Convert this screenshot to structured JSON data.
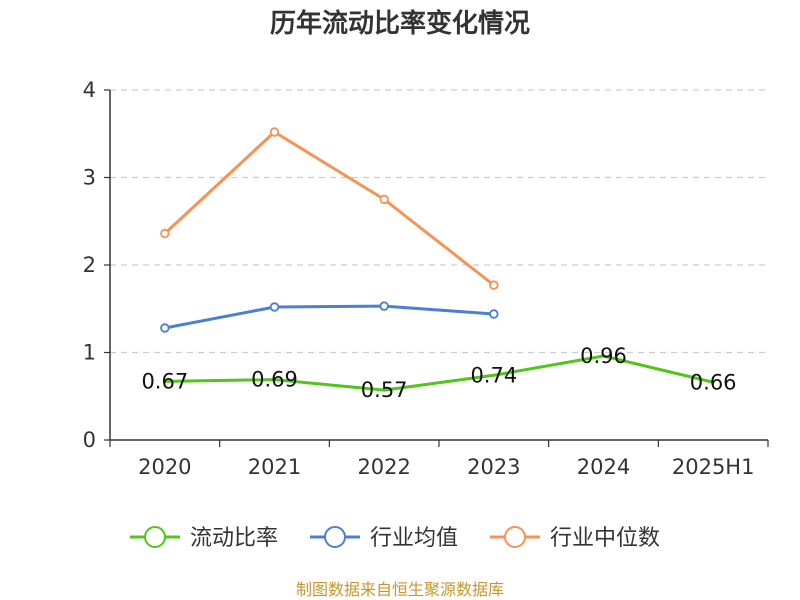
{
  "chart_data": {
    "type": "line",
    "title": "历年流动比率变化情况",
    "categories": [
      "2020",
      "2021",
      "2022",
      "2023",
      "2024",
      "2025H1"
    ],
    "y_ticks": [
      "0",
      "1",
      "2",
      "3",
      "4"
    ],
    "ylim": [
      0,
      4
    ],
    "grid": "horizontal dashed",
    "legend_position": "bottom",
    "series": [
      {
        "name": "流动比率",
        "color": "#52c41a",
        "values": [
          0.67,
          0.69,
          0.57,
          0.74,
          0.96,
          0.66
        ],
        "labels": [
          "0.67",
          "0.69",
          "0.57",
          "0.74",
          "0.96",
          "0.66"
        ],
        "show_labels": true,
        "show_markers": false
      },
      {
        "name": "行业均值",
        "color": "#4a7fd4",
        "values": [
          1.28,
          1.52,
          1.53,
          1.44,
          null,
          null
        ],
        "show_labels": false,
        "show_markers": true
      },
      {
        "name": "行业中位数",
        "color": "#f79256",
        "values": [
          2.36,
          3.52,
          2.75,
          1.77,
          null,
          null
        ],
        "show_labels": false,
        "show_markers": true
      }
    ]
  },
  "footer": {
    "source": "制图数据来自恒生聚源数据库"
  }
}
